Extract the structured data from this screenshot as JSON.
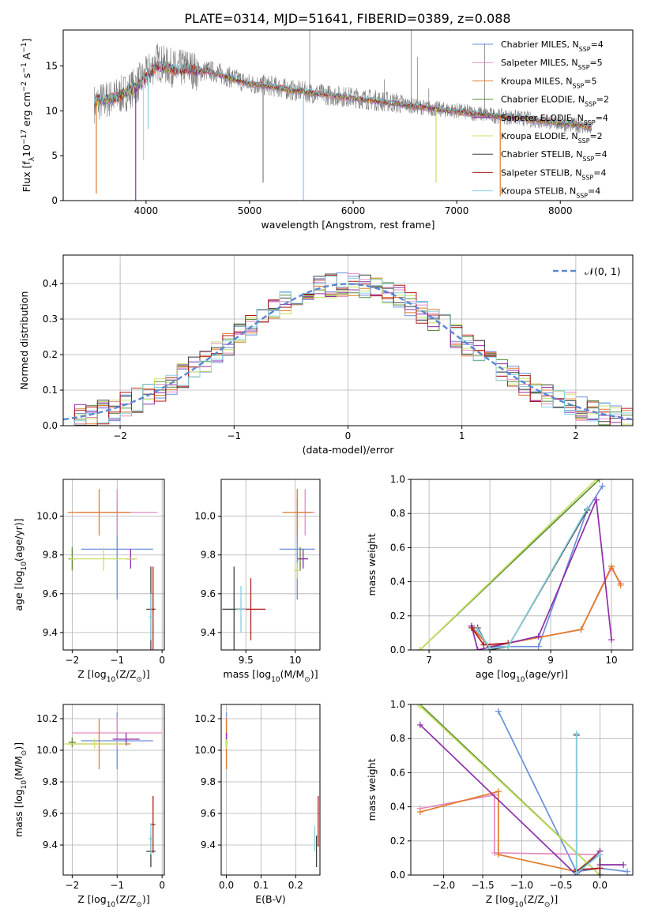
{
  "title": "PLATE=0314, MJD=51641, FIBERID=0389, z=0.088",
  "models": [
    {
      "key": "chab_miles",
      "label": "Chabrier MILES, N",
      "sub": "SSP",
      "suffix": "=4",
      "color": "#6a8fd8"
    },
    {
      "key": "salp_miles",
      "label": "Salpeter MILES, N",
      "sub": "SSP",
      "suffix": "=5",
      "color": "#e58ac0"
    },
    {
      "key": "krou_miles",
      "label": "Kroupa MILES, N",
      "sub": "SSP",
      "suffix": "=5",
      "color": "#e07b2a"
    },
    {
      "key": "chab_elodie",
      "label": "Chabrier ELODIE, N",
      "sub": "SSP",
      "suffix": "=2",
      "color": "#5a8a3a"
    },
    {
      "key": "salp_elodie",
      "label": "Salpeter ELODIE, N",
      "sub": "SSP",
      "suffix": "=4",
      "color": "#8e2fa8"
    },
    {
      "key": "krou_elodie",
      "label": "Kroupa ELODIE, N",
      "sub": "SSP",
      "suffix": "=2",
      "color": "#c8e063"
    },
    {
      "key": "chab_stelib",
      "label": "Chabrier STELIB, N",
      "sub": "SSP",
      "suffix": "=4",
      "color": "#404040"
    },
    {
      "key": "salp_stelib",
      "label": "Salpeter STELIB, N",
      "sub": "SSP",
      "suffix": "=4",
      "color": "#b01c1c"
    },
    {
      "key": "krou_stelib",
      "label": "Kroupa STELIB, N",
      "sub": "SSP",
      "suffix": "=4",
      "color": "#86d0e0"
    }
  ],
  "chart_data": [
    {
      "id": "spectrum",
      "type": "line",
      "xlabel": "wavelength [Angstrom, rest frame]",
      "ylabel_parts": [
        "Flux [f",
        "λ",
        "10",
        "−17",
        " erg cm",
        "−2",
        " s",
        "−1",
        " A",
        "−1",
        "]"
      ],
      "xlim": [
        3200,
        8700
      ],
      "ylim": [
        0,
        19
      ],
      "xticks": [
        4000,
        5000,
        6000,
        7000,
        8000
      ],
      "yticks": [
        0,
        5,
        10,
        15
      ],
      "data_color": "#808080",
      "data_curve": {
        "x": [
          3500,
          3600,
          3700,
          3800,
          3900,
          4000,
          4100,
          4200,
          4300,
          4400,
          4500,
          4600,
          4700,
          4800,
          4900,
          5000,
          5200,
          5400,
          5600,
          5800,
          6000,
          6200,
          6400,
          6600,
          6800,
          7000,
          7200,
          7400,
          7600,
          7800,
          8000,
          8200,
          8300
        ],
        "y": [
          10.8,
          11.2,
          11.5,
          12.0,
          12.8,
          13.9,
          15.5,
          15.0,
          14.6,
          14.9,
          14.3,
          14.5,
          14.2,
          13.8,
          13.4,
          13.0,
          12.8,
          12.3,
          12.0,
          11.7,
          11.5,
          11.2,
          10.9,
          10.5,
          10.2,
          10.0,
          9.7,
          9.4,
          9.2,
          8.9,
          8.6,
          8.3,
          8.0
        ]
      },
      "model_curve": {
        "x": [
          3500,
          3600,
          3700,
          3800,
          3900,
          4000,
          4100,
          4200,
          4300,
          4400,
          4500,
          4600,
          4700,
          4800,
          4900,
          5000,
          5200,
          5400,
          5600,
          5800,
          6000,
          6200,
          6400,
          6600,
          6800,
          7000,
          7200,
          7400,
          7600,
          7800,
          8000,
          8200,
          8300
        ],
        "y": [
          11.0,
          11.3,
          11.4,
          12.0,
          12.6,
          13.7,
          15.0,
          14.8,
          14.4,
          14.7,
          14.4,
          14.4,
          14.0,
          13.7,
          13.3,
          13.0,
          12.7,
          12.3,
          12.0,
          11.7,
          11.4,
          11.1,
          10.8,
          10.5,
          10.2,
          9.9,
          9.6,
          9.4,
          9.2,
          8.9,
          8.6,
          8.4,
          8.1
        ]
      },
      "dips": [
        {
          "x": 3520,
          "y": 0.8
        },
        {
          "x": 3900,
          "y": 0.0
        },
        {
          "x": 3975,
          "y": 4.5
        },
        {
          "x": 4020,
          "y": 8.0
        },
        {
          "x": 5130,
          "y": 2.0
        },
        {
          "x": 5520,
          "y": 0.0
        },
        {
          "x": 6800,
          "y": 2.0
        },
        {
          "x": 7420,
          "y": 0.5
        }
      ],
      "spikes": [
        {
          "x": 5580,
          "y": 19.0
        },
        {
          "x": 6300,
          "y": 13.5
        },
        {
          "x": 6560,
          "y": 19.0
        },
        {
          "x": 6620,
          "y": 16.0
        },
        {
          "x": 6730,
          "y": 12.5
        },
        {
          "x": 7270,
          "y": 17.5
        }
      ]
    },
    {
      "id": "residuals",
      "type": "histogram",
      "xlabel": "(data-model)/error",
      "ylabel": "Normed distribution",
      "xlim": [
        -2.5,
        2.5
      ],
      "ylim": [
        0,
        0.48
      ],
      "xticks": [
        -2,
        -1,
        0,
        1,
        2
      ],
      "yticks": [
        0.0,
        0.1,
        0.2,
        0.3,
        0.4
      ],
      "bin_start": -2.5,
      "bin_width": 0.1,
      "gauss_label": "𝒩(0, 1)",
      "gauss_color": "#5b86d3"
    },
    {
      "id": "age_vs_Z",
      "type": "scatter",
      "xlabel_parts": [
        "Z [log",
        "10",
        "(Z/Z",
        "⊙",
        ")]"
      ],
      "ylabel_parts": [
        "age  [log",
        "10",
        "(age/yr)]"
      ],
      "xlim": [
        -2.2,
        0.05
      ],
      "ylim": [
        9.31,
        10.19
      ],
      "xticks": [
        -2,
        -1,
        0
      ],
      "yticks": [
        9.4,
        9.6,
        9.8,
        10.0
      ],
      "points": [
        {
          "m": "chab_miles",
          "x": -1.0,
          "y": 9.83,
          "xe": 0.8,
          "ye": 0.26
        },
        {
          "m": "salp_miles",
          "x": -1.0,
          "y": 10.02,
          "xe": 0.9,
          "ye": 0.12
        },
        {
          "m": "krou_miles",
          "x": -1.4,
          "y": 10.02,
          "xe": 0.7,
          "ye": 0.12
        },
        {
          "m": "chab_elodie",
          "x": -2.0,
          "y": 9.78,
          "xe": 0.08,
          "ye": 0.06
        },
        {
          "m": "salp_elodie",
          "x": -0.7,
          "y": 9.78,
          "xe": 0.1,
          "ye": 0.05
        },
        {
          "m": "krou_elodie",
          "x": -1.3,
          "y": 9.78,
          "xe": 0.75,
          "ye": 0.06
        },
        {
          "m": "chab_stelib",
          "x": -0.25,
          "y": 9.52,
          "xe": 0.1,
          "ye": 0.22
        },
        {
          "m": "salp_stelib",
          "x": -0.2,
          "y": 9.52,
          "xe": 0.05,
          "ye": 0.22
        },
        {
          "m": "krou_stelib",
          "x": -0.25,
          "y": 9.48,
          "xe": 0.05,
          "ye": 0.12
        }
      ]
    },
    {
      "id": "age_vs_mass",
      "type": "scatter",
      "xlabel_parts": [
        "mass [log",
        "10",
        "(M/M",
        "⊙",
        ")]"
      ],
      "ylabel_parts": [],
      "xlim": [
        9.25,
        10.25
      ],
      "ylim": [
        9.31,
        10.19
      ],
      "xticks": [
        9.5,
        10.0
      ],
      "yticks": [
        9.4,
        9.6,
        9.8,
        10.0
      ],
      "points": [
        {
          "m": "chab_miles",
          "x": 10.02,
          "y": 9.83,
          "xe": 0.18,
          "ye": 0.26
        },
        {
          "m": "salp_miles",
          "x": 10.1,
          "y": 10.02,
          "xe": 0.1,
          "ye": 0.12
        },
        {
          "m": "krou_miles",
          "x": 10.02,
          "y": 10.02,
          "xe": 0.15,
          "ye": 0.12
        },
        {
          "m": "chab_elodie",
          "x": 10.05,
          "y": 9.78,
          "xe": 0.03,
          "ye": 0.06
        },
        {
          "m": "salp_elodie",
          "x": 10.08,
          "y": 9.78,
          "xe": 0.05,
          "ye": 0.05
        },
        {
          "m": "krou_elodie",
          "x": 10.02,
          "y": 9.72,
          "xe": 0.03,
          "ye": 0.04
        },
        {
          "m": "chab_stelib",
          "x": 9.38,
          "y": 9.52,
          "xe": 0.12,
          "ye": 0.22
        },
        {
          "m": "salp_stelib",
          "x": 9.55,
          "y": 9.52,
          "xe": 0.15,
          "ye": 0.16
        },
        {
          "m": "krou_stelib",
          "x": 9.45,
          "y": 9.52,
          "xe": 0.05,
          "ye": 0.12
        }
      ]
    },
    {
      "id": "weight_vs_age",
      "type": "line",
      "xlabel_parts": [
        "age  [log",
        "10",
        "(age/yr)]"
      ],
      "ylabel": "mass weight",
      "xlim": [
        6.7,
        10.35
      ],
      "ylim": [
        0,
        1.0
      ],
      "xticks": [
        7,
        8,
        9,
        10
      ],
      "yticks": [
        0.0,
        0.2,
        0.4,
        0.6,
        0.8,
        1.0
      ],
      "lines": [
        {
          "m": "chab_miles",
          "x": [
            7.7,
            8.0,
            8.8,
            9.6,
            9.85
          ],
          "y": [
            0.14,
            0.02,
            0.02,
            0.82,
            0.96
          ]
        },
        {
          "m": "salp_miles",
          "x": [
            7.7,
            8.0,
            9.5,
            10.0,
            10.15
          ],
          "y": [
            0.13,
            0.02,
            0.12,
            0.48,
            0.39
          ]
        },
        {
          "m": "krou_miles",
          "x": [
            7.7,
            8.0,
            9.5,
            10.0,
            10.15
          ],
          "y": [
            0.13,
            0.02,
            0.12,
            0.49,
            0.38
          ]
        },
        {
          "m": "chab_elodie",
          "x": [
            6.85,
            9.8
          ],
          "y": [
            0.0,
            1.0
          ]
        },
        {
          "m": "salp_elodie",
          "x": [
            7.7,
            7.8,
            8.8,
            9.75,
            10.0
          ],
          "y": [
            0.14,
            0.0,
            0.08,
            0.88,
            0.06
          ]
        },
        {
          "m": "krou_elodie",
          "x": [
            6.85,
            9.75
          ],
          "y": [
            0.0,
            1.0
          ]
        },
        {
          "m": "chab_stelib",
          "x": [
            7.8,
            8.0,
            8.3,
            9.6
          ],
          "y": [
            0.13,
            0.0,
            0.02,
            0.82
          ]
        },
        {
          "m": "salp_stelib",
          "x": [
            7.7,
            7.9,
            8.3
          ],
          "y": [
            0.13,
            0.03,
            0.04
          ]
        },
        {
          "m": "krou_stelib",
          "x": [
            7.8,
            8.0,
            8.3,
            9.6
          ],
          "y": [
            0.12,
            0.01,
            0.02,
            0.83
          ]
        }
      ]
    },
    {
      "id": "mass_vs_Z",
      "type": "scatter",
      "xlabel_parts": [
        "Z [log",
        "10",
        "(Z/Z",
        "⊙",
        ")]"
      ],
      "ylabel_parts": [
        "mass [log",
        "10",
        "(M/M",
        "⊙",
        ")]"
      ],
      "xlim": [
        -2.2,
        0.05
      ],
      "ylim": [
        9.21,
        10.29
      ],
      "xticks": [
        -2,
        -1,
        0
      ],
      "yticks": [
        9.4,
        9.6,
        9.8,
        10.0,
        10.2
      ],
      "points": [
        {
          "m": "chab_miles",
          "x": -1.0,
          "y": 10.06,
          "xe": 0.8,
          "ye": 0.18
        },
        {
          "m": "salp_miles",
          "x": -1.0,
          "y": 10.11,
          "xe": 1.0,
          "ye": 0.1
        },
        {
          "m": "krou_miles",
          "x": -1.4,
          "y": 10.04,
          "xe": 0.7,
          "ye": 0.16
        },
        {
          "m": "chab_elodie",
          "x": -2.0,
          "y": 10.05,
          "xe": 0.08,
          "ye": 0.03
        },
        {
          "m": "salp_elodie",
          "x": -0.8,
          "y": 10.07,
          "xe": 0.3,
          "ye": 0.04
        },
        {
          "m": "krou_elodie",
          "x": -1.5,
          "y": 10.04,
          "xe": 0.7,
          "ye": 0.03
        },
        {
          "m": "chab_stelib",
          "x": -0.25,
          "y": 9.36,
          "xe": 0.1,
          "ye": 0.1
        },
        {
          "m": "salp_stelib",
          "x": -0.2,
          "y": 9.53,
          "xe": 0.05,
          "ye": 0.18
        },
        {
          "m": "krou_stelib",
          "x": -0.25,
          "y": 9.44,
          "xe": 0.05,
          "ye": 0.1
        }
      ]
    },
    {
      "id": "mass_vs_ebv",
      "type": "scatter",
      "xlabel": "E(B-V)",
      "ylabel_parts": [],
      "xlim": [
        -0.015,
        0.27
      ],
      "ylim": [
        9.21,
        10.29
      ],
      "xticks": [
        0.0,
        0.1,
        0.2
      ],
      "yticks": [
        9.4,
        9.6,
        9.8,
        10.0,
        10.2
      ],
      "points": [
        {
          "m": "chab_miles",
          "x": 0.0,
          "y": 10.06,
          "xe": 0.0,
          "ye": 0.18
        },
        {
          "m": "salp_miles",
          "x": 0.0,
          "y": 10.11,
          "xe": 0.0,
          "ye": 0.1
        },
        {
          "m": "krou_miles",
          "x": 0.0,
          "y": 10.04,
          "xe": 0.0,
          "ye": 0.16
        },
        {
          "m": "chab_elodie",
          "x": 0.0,
          "y": 10.05,
          "xe": 0.0,
          "ye": 0.03
        },
        {
          "m": "salp_elodie",
          "x": 0.0,
          "y": 10.07,
          "xe": 0.0,
          "ye": 0.04
        },
        {
          "m": "krou_elodie",
          "x": 0.0,
          "y": 10.04,
          "xe": 0.0,
          "ye": 0.03
        },
        {
          "m": "chab_stelib",
          "x": 0.26,
          "y": 9.36,
          "xe": 0.0,
          "ye": 0.1
        },
        {
          "m": "salp_stelib",
          "x": 0.265,
          "y": 9.55,
          "xe": 0.0,
          "ye": 0.16
        },
        {
          "m": "krou_stelib",
          "x": 0.255,
          "y": 9.44,
          "xe": 0.0,
          "ye": 0.08
        }
      ]
    },
    {
      "id": "weight_vs_Z",
      "type": "line",
      "xlabel_parts": [
        "Z [log",
        "10",
        "(Z/Z",
        "⊙",
        ")]"
      ],
      "ylabel": "mass weight",
      "xlim": [
        -2.42,
        0.42
      ],
      "ylim": [
        0,
        1.0
      ],
      "xticks": [
        -2.0,
        -1.5,
        -1.0,
        -0.5,
        0.0
      ],
      "yticks": [
        0.0,
        0.2,
        0.4,
        0.6,
        0.8,
        1.0
      ],
      "lines": [
        {
          "m": "chab_miles",
          "x": [
            -1.3,
            -0.3,
            0.0,
            0.35
          ],
          "y": [
            0.96,
            0.02,
            0.04,
            0.02
          ]
        },
        {
          "m": "salp_miles",
          "x": [
            -2.3,
            -1.35,
            -1.35,
            0.0
          ],
          "y": [
            0.39,
            0.47,
            0.13,
            0.12
          ]
        },
        {
          "m": "krou_miles",
          "x": [
            -2.3,
            -1.3,
            -1.3,
            -0.3,
            0.0
          ],
          "y": [
            0.37,
            0.49,
            0.12,
            0.02,
            0.14
          ]
        },
        {
          "m": "chab_elodie",
          "x": [
            -2.3,
            0.0
          ],
          "y": [
            1.0,
            0.0
          ]
        },
        {
          "m": "salp_elodie",
          "x": [
            -2.3,
            -0.3,
            0.0,
            0.0,
            0.3
          ],
          "y": [
            0.88,
            0.0,
            0.14,
            0.06,
            0.06
          ]
        },
        {
          "m": "krou_elodie",
          "x": [
            -2.3,
            0.0
          ],
          "y": [
            0.99,
            0.0
          ]
        },
        {
          "m": "chab_stelib",
          "x": [
            -0.3,
            -0.3,
            0.0,
            0.0
          ],
          "y": [
            0.82,
            0.02,
            0.12,
            0.0
          ]
        },
        {
          "m": "salp_stelib",
          "x": [
            -0.3,
            0.0
          ],
          "y": [
            0.03,
            0.04
          ]
        },
        {
          "m": "krou_stelib",
          "x": [
            -0.3,
            -0.3,
            0.0
          ],
          "y": [
            0.83,
            0.01,
            0.12
          ]
        }
      ]
    }
  ]
}
